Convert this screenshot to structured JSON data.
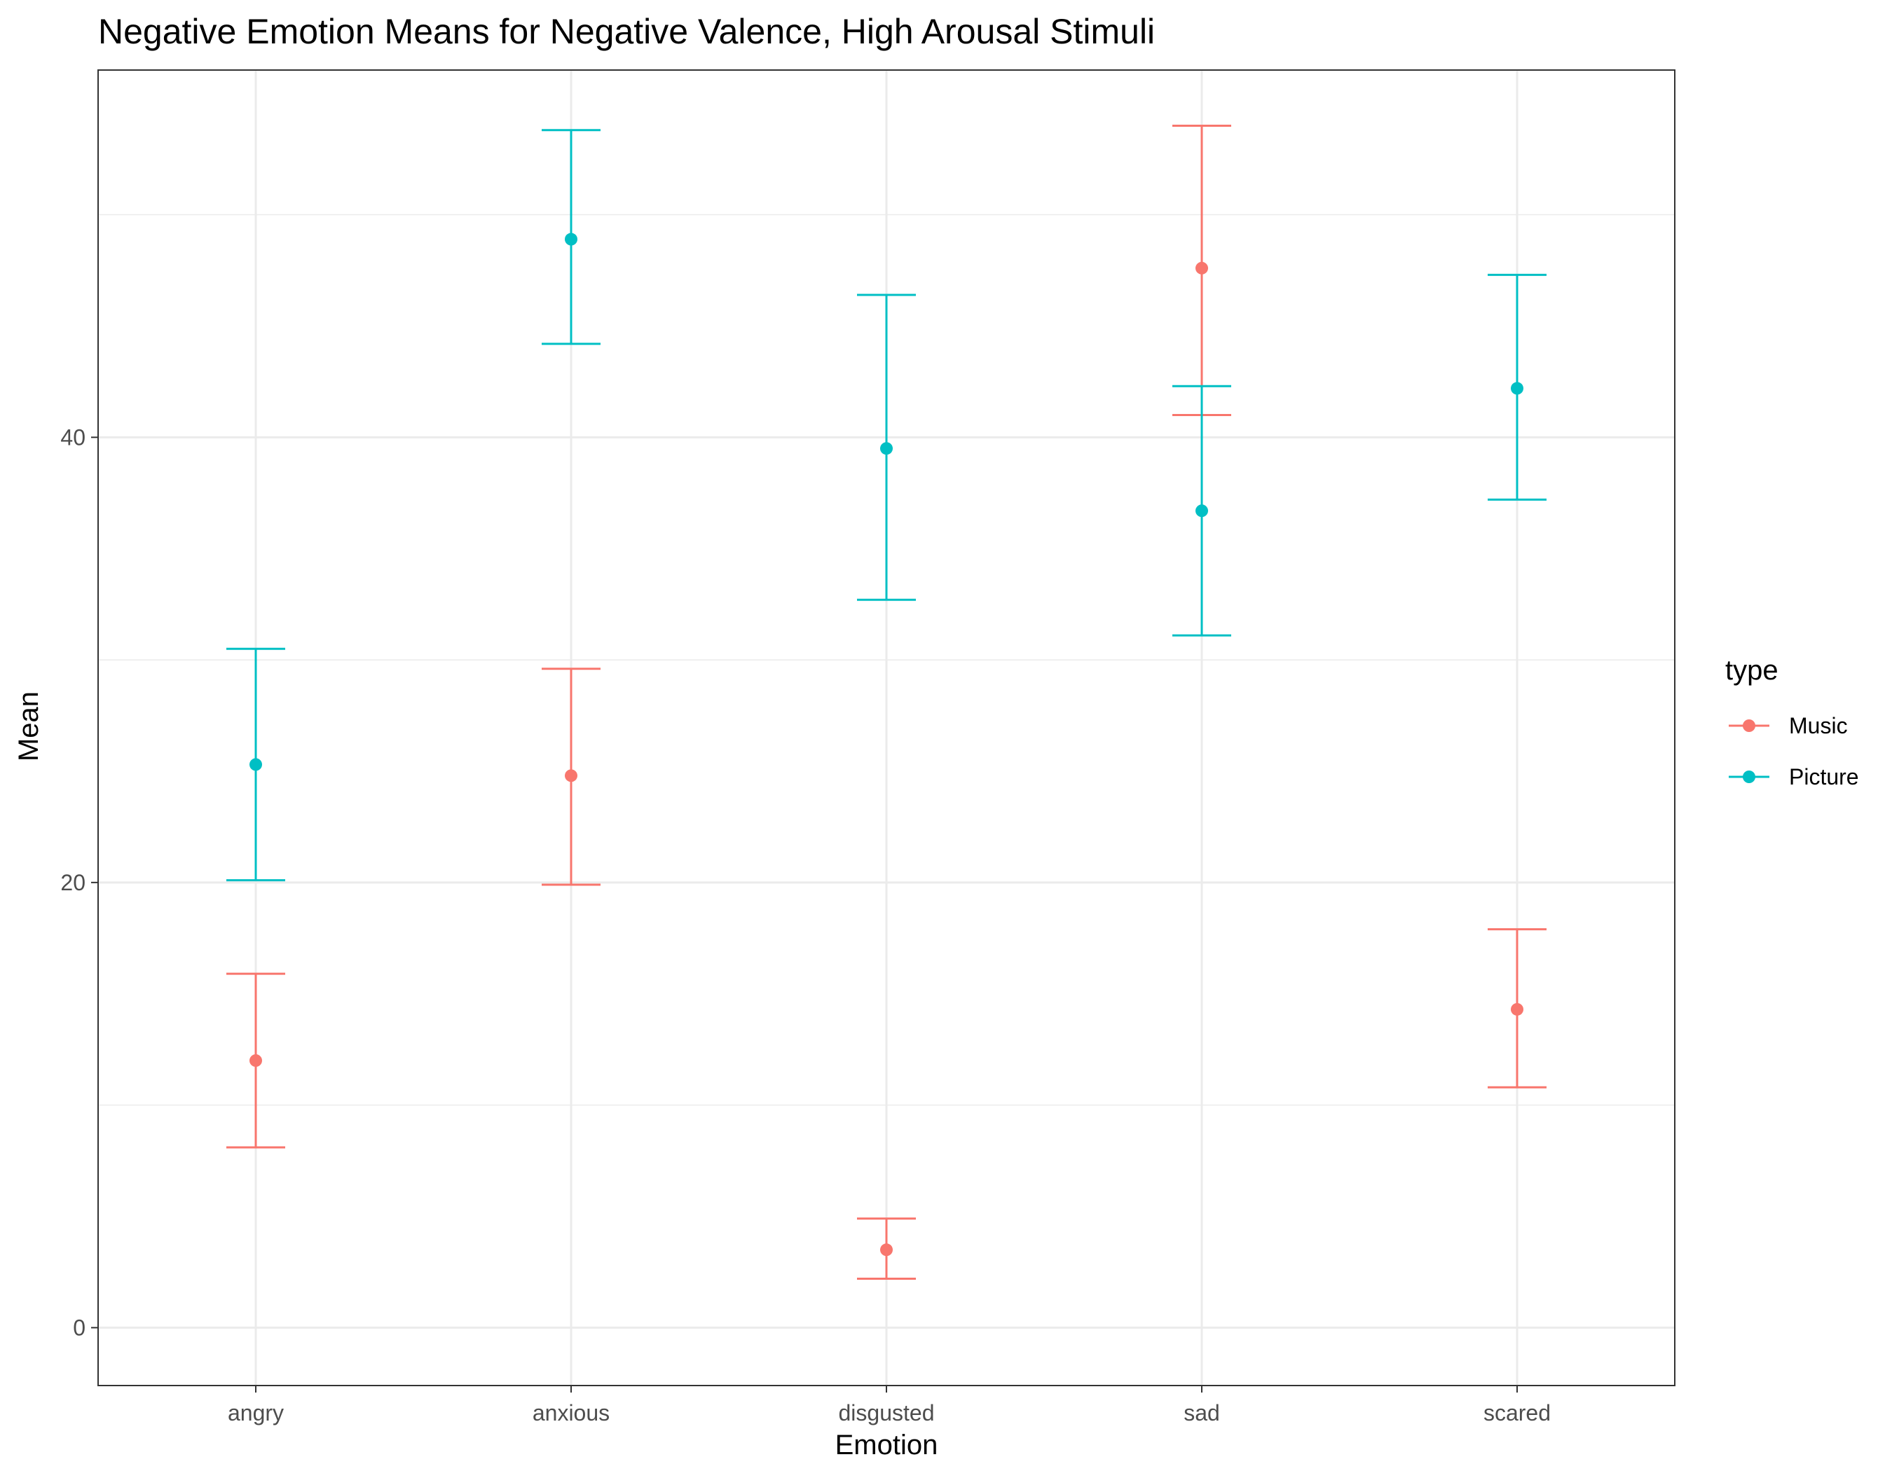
{
  "chart_data": {
    "type": "scatter",
    "title": "Negative Emotion Means for Negative Valence, High Arousal Stimuli",
    "xlabel": "Emotion",
    "ylabel": "Mean",
    "categories": [
      "angry",
      "anxious",
      "disgusted",
      "sad",
      "scared"
    ],
    "y_ticks": [
      "0",
      "20",
      "40"
    ],
    "ylim": [
      -2.6,
      56.5
    ],
    "grid": true,
    "legend": {
      "title": "type",
      "position": "right"
    },
    "error_bars": true,
    "series": [
      {
        "name": "Music",
        "color": "#F8766D",
        "values": [
          12.0,
          24.8,
          3.5,
          47.6,
          14.3
        ],
        "lower": [
          8.1,
          19.9,
          2.2,
          41.0,
          10.8
        ],
        "upper": [
          15.9,
          29.6,
          4.9,
          54.0,
          17.9
        ]
      },
      {
        "name": "Picture",
        "color": "#00BFC4",
        "values": [
          25.3,
          48.9,
          39.5,
          36.7,
          42.2
        ],
        "lower": [
          20.1,
          44.2,
          32.7,
          31.1,
          37.2
        ],
        "upper": [
          30.5,
          53.8,
          46.4,
          42.3,
          47.3
        ]
      }
    ]
  }
}
